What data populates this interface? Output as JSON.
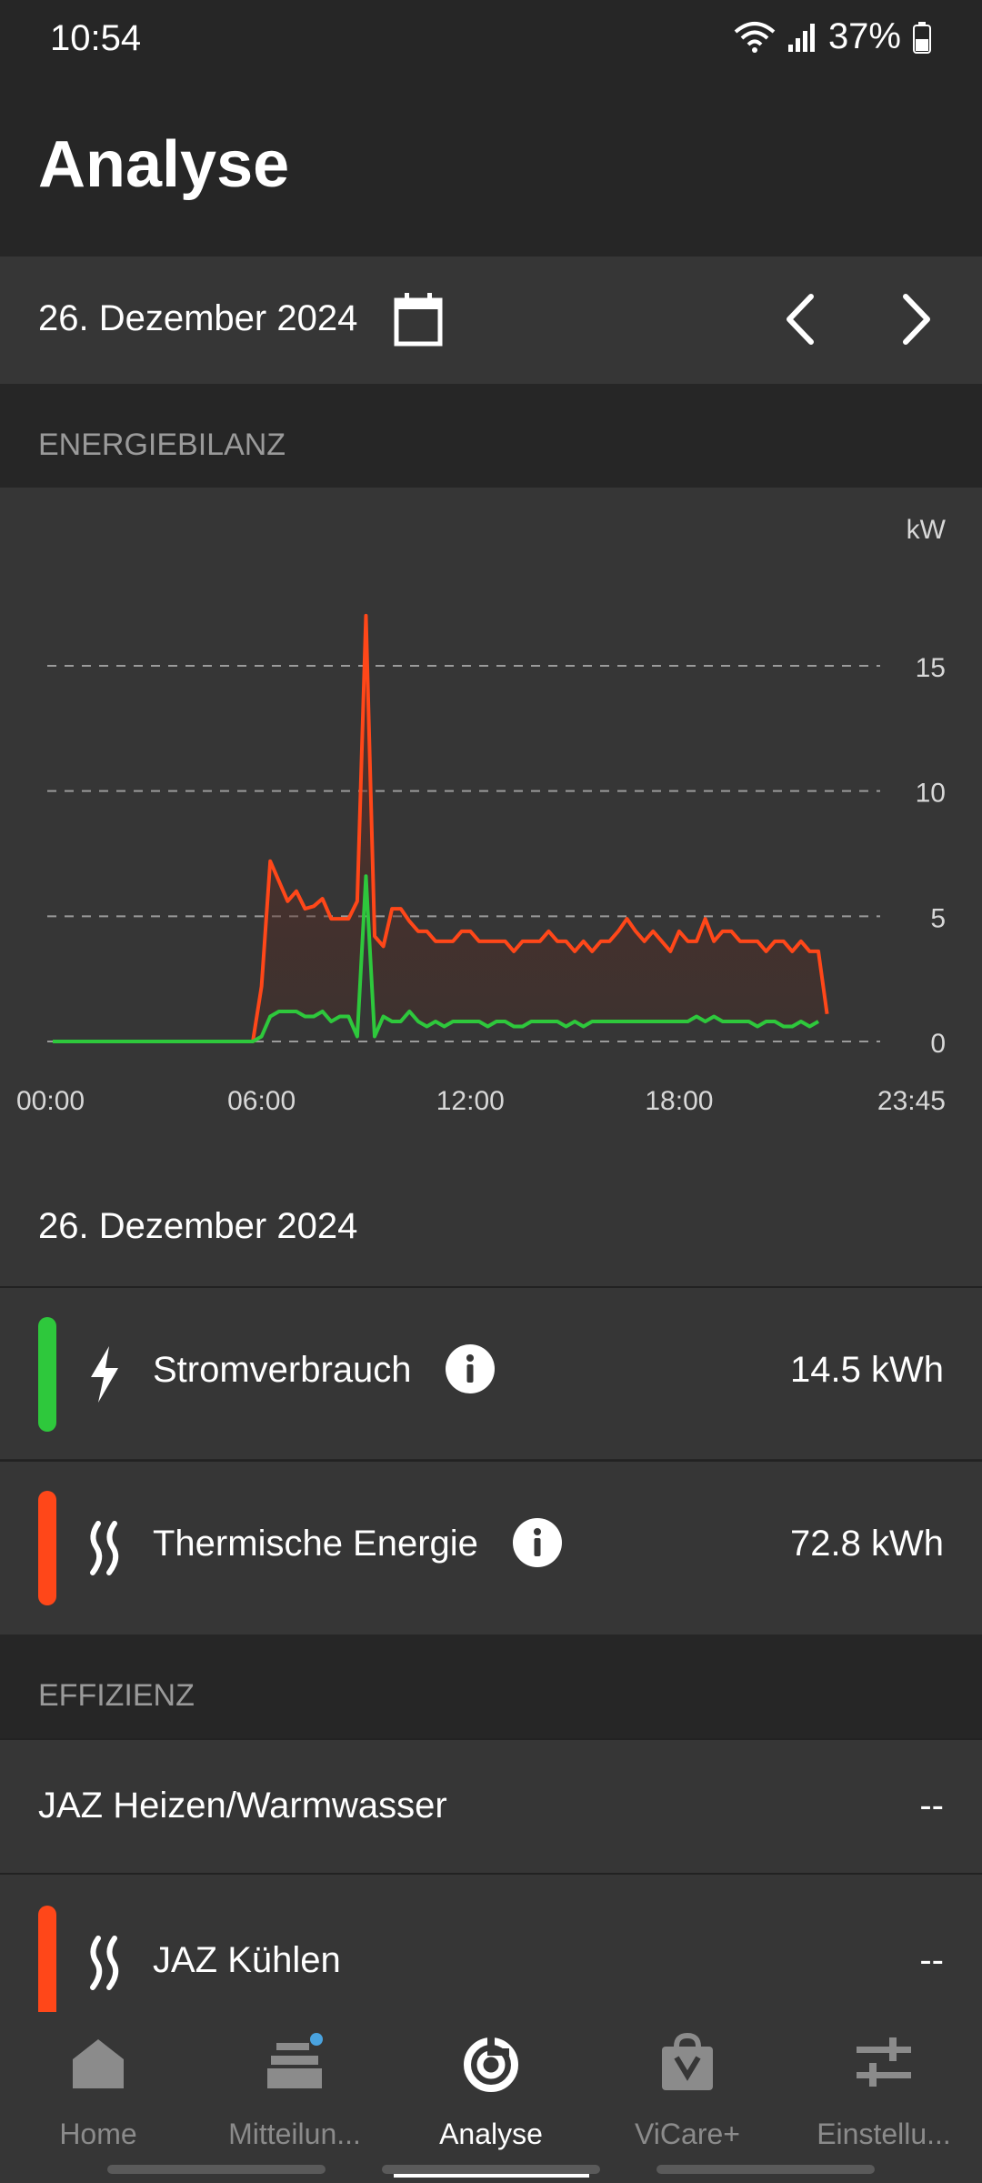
{
  "status": {
    "time": "10:54",
    "battery": "37%"
  },
  "header": {
    "title": "Analyse"
  },
  "date_nav": {
    "date": "26. Dezember 2024"
  },
  "section_energy": "ENERGIEBILANZ",
  "chart_data": {
    "type": "line",
    "ylabel": "kW",
    "ylim": [
      0,
      17
    ],
    "yticks": [
      "0",
      "5",
      "10",
      "15"
    ],
    "xticks": [
      "00:00",
      "06:00",
      "12:00",
      "18:00",
      "23:45"
    ],
    "grid": true,
    "series": [
      {
        "color": "#ff4719",
        "x": [
          0.0,
          5.75,
          6.0,
          6.25,
          6.5,
          6.75,
          7.0,
          7.25,
          7.5,
          7.75,
          8.0,
          8.25,
          8.5,
          8.75,
          9.0,
          9.25,
          9.5,
          9.75,
          10.0,
          10.25,
          10.5,
          10.75,
          11.0,
          11.25,
          11.5,
          11.75,
          12.0,
          12.25,
          12.5,
          12.75,
          13.0,
          13.25,
          13.5,
          13.75,
          14.0,
          14.25,
          14.5,
          14.75,
          15.0,
          15.25,
          15.5,
          15.75,
          16.0,
          16.25,
          16.5,
          16.75,
          17.0,
          17.25,
          17.5,
          17.75,
          18.0,
          18.25,
          18.5,
          18.75,
          19.0,
          19.25,
          19.5,
          19.75,
          20.0,
          20.25,
          20.5,
          20.75,
          21.0,
          21.25,
          21.5,
          21.75,
          22.0,
          22.25
        ],
        "y": [
          0.0,
          0.0,
          2.2,
          7.2,
          6.4,
          5.6,
          6.0,
          5.3,
          5.4,
          5.7,
          4.9,
          4.9,
          4.9,
          5.6,
          17.0,
          4.2,
          3.8,
          5.3,
          5.3,
          4.8,
          4.4,
          4.4,
          4.0,
          4.0,
          4.0,
          4.4,
          4.4,
          4.0,
          4.0,
          4.0,
          4.0,
          3.6,
          4.0,
          4.0,
          4.0,
          4.4,
          4.0,
          4.0,
          3.6,
          4.0,
          3.6,
          4.0,
          4.0,
          4.4,
          4.9,
          4.4,
          4.0,
          4.4,
          4.0,
          3.6,
          4.4,
          4.0,
          4.0,
          4.9,
          4.0,
          4.4,
          4.4,
          4.0,
          4.0,
          4.0,
          3.6,
          4.0,
          4.0,
          3.6,
          4.0,
          3.6,
          3.6,
          1.1
        ]
      },
      {
        "color": "#2ec83c",
        "x": [
          0.0,
          5.75,
          6.0,
          6.25,
          6.5,
          6.75,
          7.0,
          7.25,
          7.5,
          7.75,
          8.0,
          8.25,
          8.5,
          8.75,
          9.0,
          9.25,
          9.5,
          9.75,
          10.0,
          10.25,
          10.5,
          10.75,
          11.0,
          11.25,
          11.5,
          11.75,
          12.0,
          12.25,
          12.5,
          12.75,
          13.0,
          13.25,
          13.5,
          13.75,
          14.0,
          14.25,
          14.5,
          14.75,
          15.0,
          15.25,
          15.5,
          15.75,
          16.0,
          16.25,
          16.5,
          16.75,
          17.0,
          17.25,
          17.5,
          17.75,
          18.0,
          18.25,
          18.5,
          18.75,
          19.0,
          19.25,
          19.5,
          19.75,
          20.0,
          20.25,
          20.5,
          20.75,
          21.0,
          21.25,
          21.5,
          21.75,
          22.0
        ],
        "y": [
          0.0,
          0.0,
          0.2,
          1.0,
          1.2,
          1.2,
          1.2,
          1.0,
          1.0,
          1.2,
          0.8,
          1.0,
          1.0,
          0.2,
          6.6,
          0.2,
          1.0,
          0.8,
          0.8,
          1.2,
          0.8,
          0.6,
          0.8,
          0.6,
          0.8,
          0.8,
          0.8,
          0.8,
          0.6,
          0.8,
          0.8,
          0.6,
          0.6,
          0.8,
          0.8,
          0.8,
          0.8,
          0.6,
          0.8,
          0.6,
          0.8,
          0.8,
          0.8,
          0.8,
          0.8,
          0.8,
          0.8,
          0.8,
          0.8,
          0.8,
          0.8,
          0.8,
          1.0,
          0.8,
          1.0,
          0.8,
          0.8,
          0.8,
          0.8,
          0.6,
          0.8,
          0.8,
          0.6,
          0.6,
          0.8,
          0.6,
          0.8
        ]
      }
    ]
  },
  "summary": {
    "date": "26. Dezember 2024"
  },
  "energy_rows": [
    {
      "label": "Stromverbrauch",
      "value": "14.5 kWh",
      "color": "#2ec83c",
      "icon": "lightning-icon"
    },
    {
      "label": "Thermische Energie",
      "value": "72.8 kWh",
      "color": "#ff4719",
      "icon": "heat-waves-icon"
    }
  ],
  "section_efficiency": "EFFIZIENZ",
  "efficiency_rows": [
    {
      "label": "JAZ Heizen/Warmwasser",
      "value": "--"
    },
    {
      "label": "JAZ Kühlen",
      "value": "--",
      "color": "#ff4719",
      "icon": "heat-waves-icon"
    }
  ],
  "nav": {
    "tabs": [
      {
        "label": "Home",
        "icon": "home-icon"
      },
      {
        "label": "Mitteilun...",
        "icon": "messages-icon"
      },
      {
        "label": "Analyse",
        "icon": "analysis-icon"
      },
      {
        "label": "ViCare+",
        "icon": "shopping-bag-icon"
      },
      {
        "label": "Einstellu...",
        "icon": "settings-sliders-icon"
      }
    ]
  }
}
